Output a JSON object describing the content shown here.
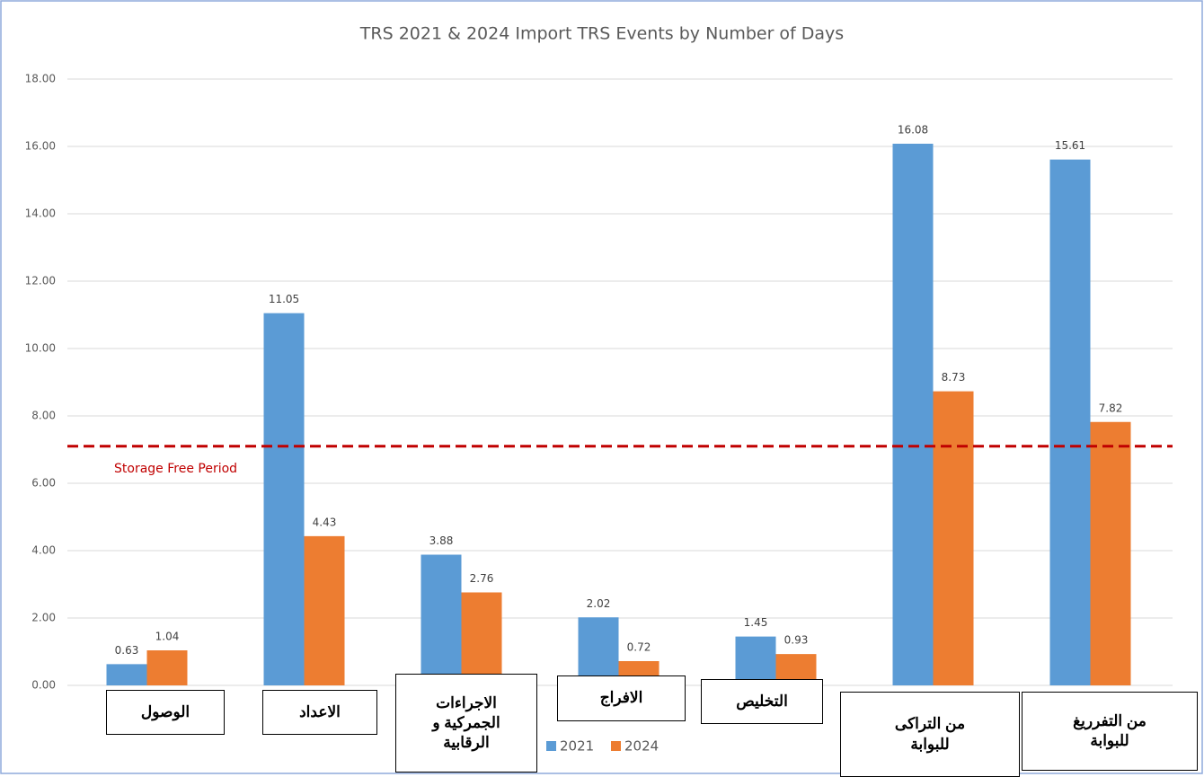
{
  "chart_data": {
    "type": "bar",
    "title": "TRS 2021 & 2024 Import TRS Events by Number of Days",
    "categories": [
      "الوصول",
      "الاعداد",
      "الاجراءات\nالجمركية و\nالرقابية",
      "الافراج",
      "التخليص",
      "من التراكى\nللبوابة",
      "من التفرريغ\nللبوابة"
    ],
    "series": [
      {
        "name": "2021",
        "color": "#5b9bd5",
        "values": [
          0.63,
          11.05,
          3.88,
          2.02,
          1.45,
          16.08,
          15.61
        ]
      },
      {
        "name": "2024",
        "color": "#ed7d31",
        "values": [
          1.04,
          4.43,
          2.76,
          0.72,
          0.93,
          8.73,
          7.82
        ]
      }
    ],
    "ylim": [
      0,
      18
    ],
    "yticks": [
      {
        "value": 0,
        "label": "0.00"
      },
      {
        "value": 2,
        "label": "2.00"
      },
      {
        "value": 4,
        "label": "4.00"
      },
      {
        "value": 6,
        "label": "6.00"
      },
      {
        "value": 8,
        "label": "8.00"
      },
      {
        "value": 10,
        "label": "10.00"
      },
      {
        "value": 12,
        "label": "12.00"
      },
      {
        "value": 14,
        "label": "14.00"
      },
      {
        "value": 16,
        "label": "16.00"
      },
      {
        "value": 18,
        "label": "18.00"
      }
    ],
    "grid": true,
    "legend": "bottom",
    "reference_line": {
      "label": "Storage Free Period",
      "value": 7.1,
      "color": "#c00000"
    }
  }
}
